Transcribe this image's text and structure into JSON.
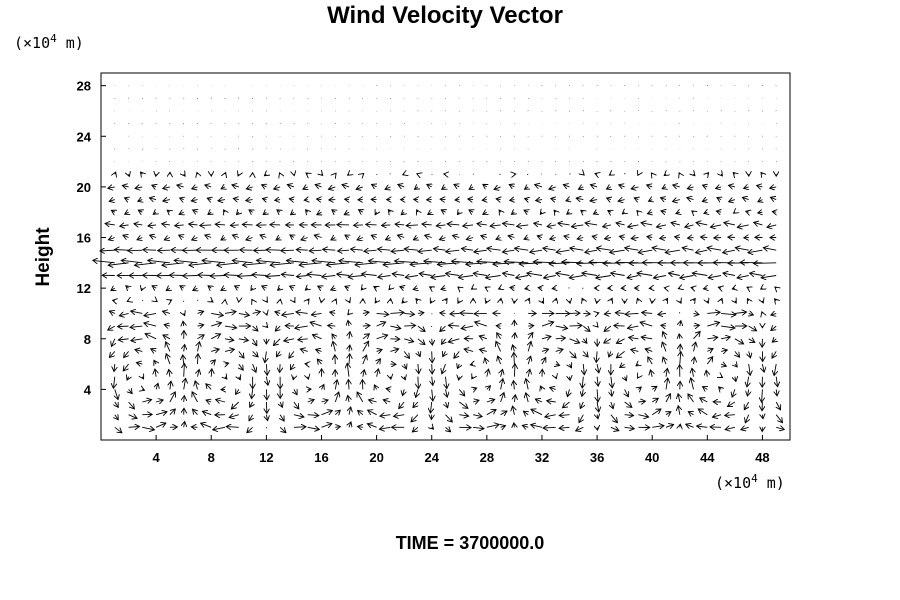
{
  "chart_data": {
    "type": "vector_field",
    "title": "Wind Velocity Vector",
    "ylabel": "Height",
    "xlabel": "",
    "x_unit_prefix": "(×10",
    "x_unit_exp": "4",
    "x_unit_suffix": " m)",
    "y_unit_prefix": "(×10",
    "y_unit_exp": "4",
    "y_unit_suffix": " m)",
    "xlim": [
      0,
      50
    ],
    "ylim": [
      0,
      29
    ],
    "x_ticks": [
      4,
      8,
      12,
      16,
      20,
      24,
      28,
      32,
      36,
      40,
      44,
      48
    ],
    "y_ticks": [
      4,
      8,
      12,
      16,
      20,
      24,
      28
    ],
    "grid": false,
    "grid_dx": 1,
    "grid_dy": 1,
    "time_label": "TIME = 3700000.0"
  }
}
